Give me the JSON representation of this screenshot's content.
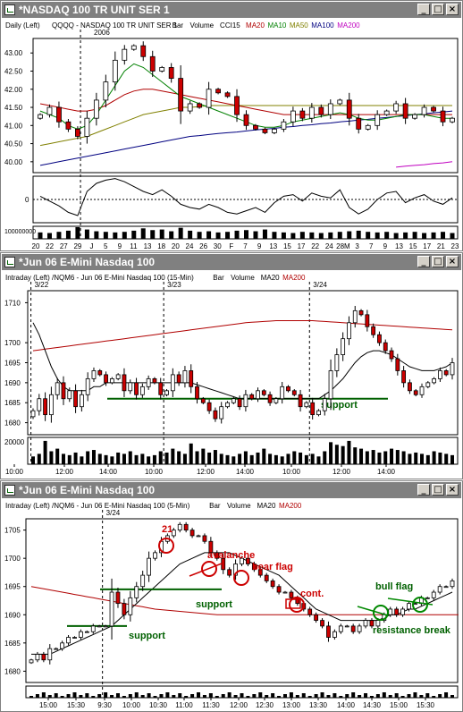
{
  "windows": [
    {
      "title": "*NASDAQ 100 TR UNIT SER 1",
      "header": {
        "period": "Daily",
        "axis_side": "(Left)",
        "symbol_desc": "QQQQ - NASDAQ 100 TR UNIT SER 1",
        "items": [
          {
            "text": "Bar",
            "color": "#000000"
          },
          {
            "text": "Volume",
            "color": "#000000"
          },
          {
            "text": "CCI15",
            "color": "#000000"
          },
          {
            "text": "MA20",
            "color": "#b00000"
          },
          {
            "text": "MA10",
            "color": "#008000"
          },
          {
            "text": "MA50",
            "color": "#808000"
          },
          {
            "text": "MA100",
            "color": "#000080"
          },
          {
            "text": "MA200",
            "color": "#c000c0"
          }
        ],
        "year_marker": "2006"
      },
      "y_ticks": [
        "43.00",
        "42.50",
        "42.00",
        "41.50",
        "41.00",
        "40.50",
        "40.00"
      ],
      "cci_ticks": [
        "0"
      ],
      "volume_tick": "100000000",
      "x_labels": [
        "20",
        "22",
        "27",
        "29",
        "J",
        "5",
        "9",
        "11",
        "13",
        "18",
        "20",
        "24",
        "26",
        "30",
        "F",
        "7",
        "9",
        "13",
        "15",
        "17",
        "22",
        "24",
        "28M",
        "3",
        "7",
        "9",
        "13",
        "15",
        "17",
        "21",
        "23"
      ]
    },
    {
      "title": "*Jun 06  E-Mini Nasdaq 100",
      "header": {
        "period": "Intraday",
        "axis_side": "(Left)",
        "symbol_desc": "/NQM6 - Jun 06  E-Mini Nasdaq 100 (15-Min)",
        "items": [
          {
            "text": "Bar",
            "color": "#000000"
          },
          {
            "text": "Volume",
            "color": "#000000"
          },
          {
            "text": "MA20",
            "color": "#000000"
          },
          {
            "text": "MA200",
            "color": "#b00000"
          }
        ]
      },
      "date_markers": [
        "3/22",
        "3/23",
        "3/24"
      ],
      "y_ticks": [
        "1710",
        "1700",
        "1695",
        "1690",
        "1685",
        "1680"
      ],
      "volume_tick": "20000",
      "x_labels": [
        "10:00",
        "12:00",
        "14:00",
        "10:00",
        "12:00",
        "14:00",
        "10:00",
        "12:00",
        "14:00"
      ],
      "annotations": [
        {
          "text": "support",
          "color": "#006000"
        }
      ]
    },
    {
      "title": "*Jun 06  E-Mini Nasdaq 100",
      "header": {
        "period": "Intraday",
        "axis_side": "(Left)",
        "symbol_desc": "/NQM6 - Jun 06  E-Mini Nasdaq 100 (5-Min)",
        "items": [
          {
            "text": "Bar",
            "color": "#000000"
          },
          {
            "text": "Volume",
            "color": "#000000"
          },
          {
            "text": "MA20",
            "color": "#000000"
          },
          {
            "text": "MA200",
            "color": "#b00000"
          }
        ]
      },
      "date_markers": [
        "3/24"
      ],
      "y_ticks": [
        "1705",
        "1700",
        "1695",
        "1690",
        "1685",
        "1680"
      ],
      "x_labels": [
        "15:00",
        "15:30",
        "9:30",
        "10:00",
        "10:30",
        "11:00",
        "11:30",
        "12:00",
        "12:30",
        "13:00",
        "13:30",
        "14:00",
        "14:30",
        "15:00",
        "15:30"
      ],
      "annotations": [
        {
          "text": "21",
          "color": "#cc0000"
        },
        {
          "text": "avalanche",
          "color": "#cc0000"
        },
        {
          "text": "bear flag",
          "color": "#cc0000"
        },
        {
          "text": "cont.",
          "color": "#cc0000"
        },
        {
          "text": "support",
          "color": "#006000"
        },
        {
          "text": "support",
          "color": "#006000"
        },
        {
          "text": "bull flag",
          "color": "#006000"
        },
        {
          "text": "resistance break",
          "color": "#006000"
        }
      ]
    }
  ],
  "chart_data": [
    {
      "type": "candlestick",
      "title": "QQQQ - NASDAQ 100 TR UNIT SER 1",
      "ylim": [
        39.7,
        43.4
      ],
      "closes": [
        41.3,
        41.5,
        41.1,
        40.9,
        40.7,
        41.2,
        41.7,
        42.2,
        42.8,
        43.1,
        43.2,
        42.9,
        42.5,
        42.6,
        42.3,
        41.4,
        41.6,
        41.5,
        42.0,
        41.9,
        41.8,
        41.3,
        41.0,
        40.9,
        40.8,
        40.9,
        41.1,
        41.4,
        41.2,
        41.5,
        41.3,
        41.6,
        41.7,
        41.2,
        40.9,
        41.0,
        41.3,
        41.4,
        41.6,
        41.2,
        41.3,
        41.5,
        41.4,
        41.1,
        41.2
      ],
      "ma10": [
        41.4,
        41.3,
        41.2,
        41.0,
        40.9,
        41.0,
        41.3,
        41.7,
        42.1,
        42.5,
        42.7,
        42.6,
        42.4,
        42.2,
        42.0,
        41.8,
        41.7,
        41.6,
        41.5,
        41.4,
        41.3,
        41.2,
        41.1,
        41.0,
        40.95,
        40.95,
        41.0,
        41.1,
        41.15,
        41.2,
        41.25,
        41.3,
        41.35,
        41.3,
        41.2,
        41.15,
        41.15,
        41.2,
        41.25,
        41.3,
        41.3,
        41.3,
        41.25,
        41.2,
        41.2
      ],
      "ma20": [
        41.6,
        41.55,
        41.5,
        41.45,
        41.4,
        41.4,
        41.45,
        41.55,
        41.7,
        41.85,
        41.95,
        42.0,
        42.0,
        41.95,
        41.9,
        41.85,
        41.8,
        41.75,
        41.7,
        41.65,
        41.6,
        41.55,
        41.5,
        41.45,
        41.4,
        41.35,
        41.3,
        41.3,
        41.3,
        41.3,
        41.3,
        41.3,
        41.3,
        41.3,
        41.3,
        41.3,
        41.3,
        41.3,
        41.3,
        41.3,
        41.3,
        41.3,
        41.3,
        41.3,
        41.3
      ],
      "ma50": [
        40.45,
        40.5,
        40.55,
        40.6,
        40.65,
        40.7,
        40.8,
        40.9,
        41.0,
        41.1,
        41.2,
        41.3,
        41.35,
        41.4,
        41.45,
        41.5,
        41.5,
        41.52,
        41.55,
        41.55,
        41.55,
        41.55,
        41.55,
        41.55,
        41.55,
        41.55,
        41.55,
        41.55,
        41.55,
        41.55,
        41.55,
        41.55,
        41.55,
        41.55,
        41.55,
        41.55,
        41.55,
        41.55,
        41.55,
        41.55,
        41.55,
        41.55,
        41.55,
        41.55,
        41.55
      ],
      "ma100": [
        39.9,
        39.95,
        40.0,
        40.05,
        40.1,
        40.15,
        40.2,
        40.25,
        40.3,
        40.35,
        40.4,
        40.45,
        40.5,
        40.55,
        40.6,
        40.65,
        40.7,
        40.72,
        40.75,
        40.78,
        40.8,
        40.82,
        40.85,
        40.88,
        40.9,
        40.92,
        40.95,
        40.97,
        41.0,
        41.02,
        41.05,
        41.07,
        41.1,
        41.12,
        41.15,
        41.17,
        41.2,
        41.22,
        41.25,
        41.27,
        41.3,
        41.32,
        41.35,
        41.37,
        41.4
      ],
      "ma200": [
        null,
        null,
        null,
        null,
        null,
        null,
        null,
        null,
        null,
        null,
        null,
        null,
        null,
        null,
        null,
        null,
        null,
        null,
        null,
        null,
        null,
        null,
        null,
        null,
        null,
        null,
        null,
        null,
        null,
        null,
        null,
        null,
        null,
        null,
        null,
        null,
        null,
        null,
        39.85,
        39.88,
        39.9,
        39.92,
        39.95,
        39.97,
        40.0
      ],
      "cci": [
        0.2,
        -0.1,
        -0.4,
        -0.8,
        -1.0,
        0.5,
        1.0,
        1.2,
        1.3,
        1.1,
        0.8,
        0.5,
        0.3,
        0.6,
        0.2,
        -0.3,
        -0.5,
        -0.6,
        -0.3,
        -0.5,
        -0.8,
        -0.9,
        -0.7,
        -0.5,
        -0.8,
        -0.2,
        0.2,
        0.3,
        -0.1,
        0.4,
        0.2,
        0.1,
        0.6,
        -0.5,
        -0.9,
        -0.6,
        0.0,
        0.4,
        0.5,
        -0.2,
        0.1,
        0.3,
        -0.1,
        -0.3,
        0.1
      ],
      "volume": [
        0.55,
        0.5,
        0.6,
        0.7,
        1.0,
        0.8,
        0.65,
        0.6,
        0.55,
        0.6,
        0.7,
        0.9,
        0.75,
        0.8,
        0.65,
        0.95,
        0.7,
        0.6,
        0.65,
        0.55,
        0.6,
        0.7,
        0.75,
        0.65,
        0.8,
        0.6,
        0.55,
        0.5,
        0.6,
        0.55,
        0.5,
        0.55,
        0.6,
        0.65,
        0.7,
        0.6,
        0.55,
        0.6,
        0.5,
        0.55,
        0.6,
        0.5,
        0.55,
        0.6,
        0.5
      ]
    },
    {
      "type": "candlestick",
      "title": "/NQM6 - Jun 06 E-Mini Nasdaq 100 (15-Min)",
      "ylim": [
        1677,
        1713
      ],
      "closes": [
        1683,
        1686,
        1682,
        1687,
        1690,
        1686,
        1688,
        1684,
        1687,
        1691,
        1693,
        1692,
        1690,
        1691,
        1692,
        1688,
        1690,
        1687,
        1689,
        1691,
        1690,
        1687,
        1688,
        1692,
        1690,
        1693,
        1689,
        1686,
        1685,
        1683,
        1681,
        1684,
        1685,
        1686,
        1684,
        1687,
        1686,
        1688,
        1687,
        1685,
        1686,
        1689,
        1688,
        1687,
        1684,
        1685,
        1682,
        1683,
        1686,
        1693,
        1697,
        1701,
        1705,
        1708,
        1707,
        1704,
        1702,
        1700,
        1698,
        1696,
        1693,
        1690,
        1688,
        1687,
        1689,
        1690,
        1691,
        1693,
        1692,
        1695
      ],
      "ma20": [
        1705,
        1702,
        1698,
        1694,
        1691,
        1689,
        1688,
        1688,
        1688,
        1688,
        1689,
        1689,
        1690,
        1690,
        1690,
        1690,
        1690,
        1690,
        1690,
        1690,
        1690,
        1690,
        1690,
        1690,
        1690,
        1690,
        1690,
        1689.5,
        1689,
        1688.5,
        1688,
        1687.5,
        1687,
        1686.5,
        1686,
        1686,
        1686,
        1686,
        1686,
        1686,
        1686,
        1686,
        1686,
        1686,
        1686,
        1686,
        1686,
        1686,
        1687,
        1688,
        1689.5,
        1691,
        1693,
        1695,
        1696.5,
        1697.5,
        1698,
        1698,
        1697.5,
        1697,
        1696,
        1695,
        1694,
        1693.5,
        1693,
        1693,
        1693,
        1693.5,
        1694,
        1695
      ],
      "ma200": [
        1698,
        1698.2,
        1698.4,
        1698.6,
        1698.8,
        1699,
        1699.2,
        1699.4,
        1699.6,
        1699.8,
        1700,
        1700.2,
        1700.4,
        1700.6,
        1700.8,
        1701,
        1701.2,
        1701.4,
        1701.6,
        1701.8,
        1702,
        1702.2,
        1702.4,
        1702.6,
        1702.8,
        1703,
        1703.2,
        1703.4,
        1703.6,
        1703.8,
        1704,
        1704.2,
        1704.4,
        1704.6,
        1704.8,
        1705,
        1705.1,
        1705.2,
        1705.3,
        1705.4,
        1705.5,
        1705.5,
        1705.5,
        1705.5,
        1705.5,
        1705.5,
        1705.5,
        1705.4,
        1705.3,
        1705.2,
        1705.1,
        1705,
        1704.9,
        1704.8,
        1704.7,
        1704.6,
        1704.5,
        1704.4,
        1704.3,
        1704.2,
        1704.1,
        1704,
        1703.9,
        1703.8,
        1703.7,
        1703.6,
        1703.5,
        1703.4,
        1703.3,
        1703.2
      ],
      "support_level": 1686,
      "volume": [
        0.3,
        0.4,
        0.9,
        0.5,
        0.6,
        0.4,
        0.35,
        0.45,
        0.3,
        0.5,
        0.55,
        0.4,
        0.35,
        0.3,
        0.45,
        0.4,
        0.5,
        0.35,
        0.4,
        0.3,
        0.35,
        0.5,
        0.45,
        0.6,
        0.5,
        0.4,
        0.8,
        0.5,
        0.6,
        0.45,
        0.55,
        0.4,
        0.35,
        0.3,
        0.4,
        0.5,
        0.35,
        0.45,
        0.6,
        0.4,
        0.35,
        0.3,
        0.4,
        0.5,
        0.45,
        0.35,
        0.4,
        0.3,
        0.5,
        0.85,
        0.75,
        0.7,
        0.9,
        0.65,
        0.6,
        0.5,
        0.55,
        0.45,
        0.5,
        0.6,
        0.55,
        0.5,
        0.4,
        0.45,
        0.4,
        0.35,
        0.5,
        0.45,
        0.4,
        0.35
      ]
    },
    {
      "type": "candlestick",
      "title": "/NQM6 - Jun 06 E-Mini Nasdaq 100 (5-Min)",
      "ylim": [
        1678,
        1707
      ],
      "closes": [
        1682,
        1683,
        1682,
        1684,
        1684,
        1685,
        1686,
        1686,
        1687,
        1687,
        1688,
        1688,
        1688,
        1694,
        1692,
        1690,
        1693,
        1695,
        1697,
        1700,
        1701,
        1703,
        1704,
        1705,
        1706,
        1705,
        1704,
        1704,
        1703,
        1701,
        1700,
        1698,
        1697,
        1699,
        1700,
        1699,
        1698,
        1697,
        1696,
        1695,
        1694,
        1694,
        1693,
        1692,
        1691,
        1690,
        1689,
        1688,
        1686,
        1687,
        1688,
        1688,
        1687,
        1688,
        1689,
        1688,
        1689,
        1690,
        1691,
        1690,
        1691,
        1692,
        1692,
        1693,
        1693,
        1694,
        1695,
        1695,
        1696
      ],
      "ma20": [
        1683,
        1683,
        1683,
        1683,
        1683.5,
        1684,
        1684.5,
        1685,
        1685.5,
        1686,
        1686.5,
        1687,
        1687.5,
        1688,
        1689,
        1690,
        1691,
        1692,
        1693,
        1694,
        1695,
        1696,
        1697,
        1698,
        1699,
        1699.5,
        1700,
        1700.5,
        1701,
        1701,
        1701,
        1701,
        1701,
        1700.5,
        1700,
        1699.5,
        1699,
        1698.5,
        1698,
        1697.5,
        1697,
        1696,
        1695,
        1694,
        1693,
        1692,
        1691,
        1690.5,
        1690,
        1689.5,
        1689,
        1689,
        1689,
        1689,
        1689,
        1689,
        1689,
        1689.5,
        1690,
        1690,
        1690.5,
        1691,
        1691,
        1691.5,
        1692,
        1692.5,
        1693,
        1693.5,
        1694
      ],
      "ma200": [
        1695,
        1694.8,
        1694.6,
        1694.4,
        1694.2,
        1694,
        1693.8,
        1693.6,
        1693.4,
        1693.2,
        1693,
        1692.8,
        1692.6,
        1692.4,
        1692.2,
        1692,
        1691.8,
        1691.6,
        1691.4,
        1691.2,
        1691,
        1690.9,
        1690.8,
        1690.7,
        1690.6,
        1690.5,
        1690.4,
        1690.3,
        1690.2,
        1690.1,
        1690,
        1690,
        1690,
        1690,
        1690,
        1690,
        1690,
        1690,
        1690,
        1690,
        1690,
        1690,
        1690,
        1690,
        1690,
        1690,
        1690,
        1690,
        1690,
        1690,
        1690,
        1690,
        1690,
        1690,
        1690,
        1690,
        1690,
        1690,
        1690,
        1690,
        1690,
        1690,
        1690,
        1690,
        1690,
        1690,
        1690,
        1690,
        1690,
        1690
      ]
    }
  ]
}
